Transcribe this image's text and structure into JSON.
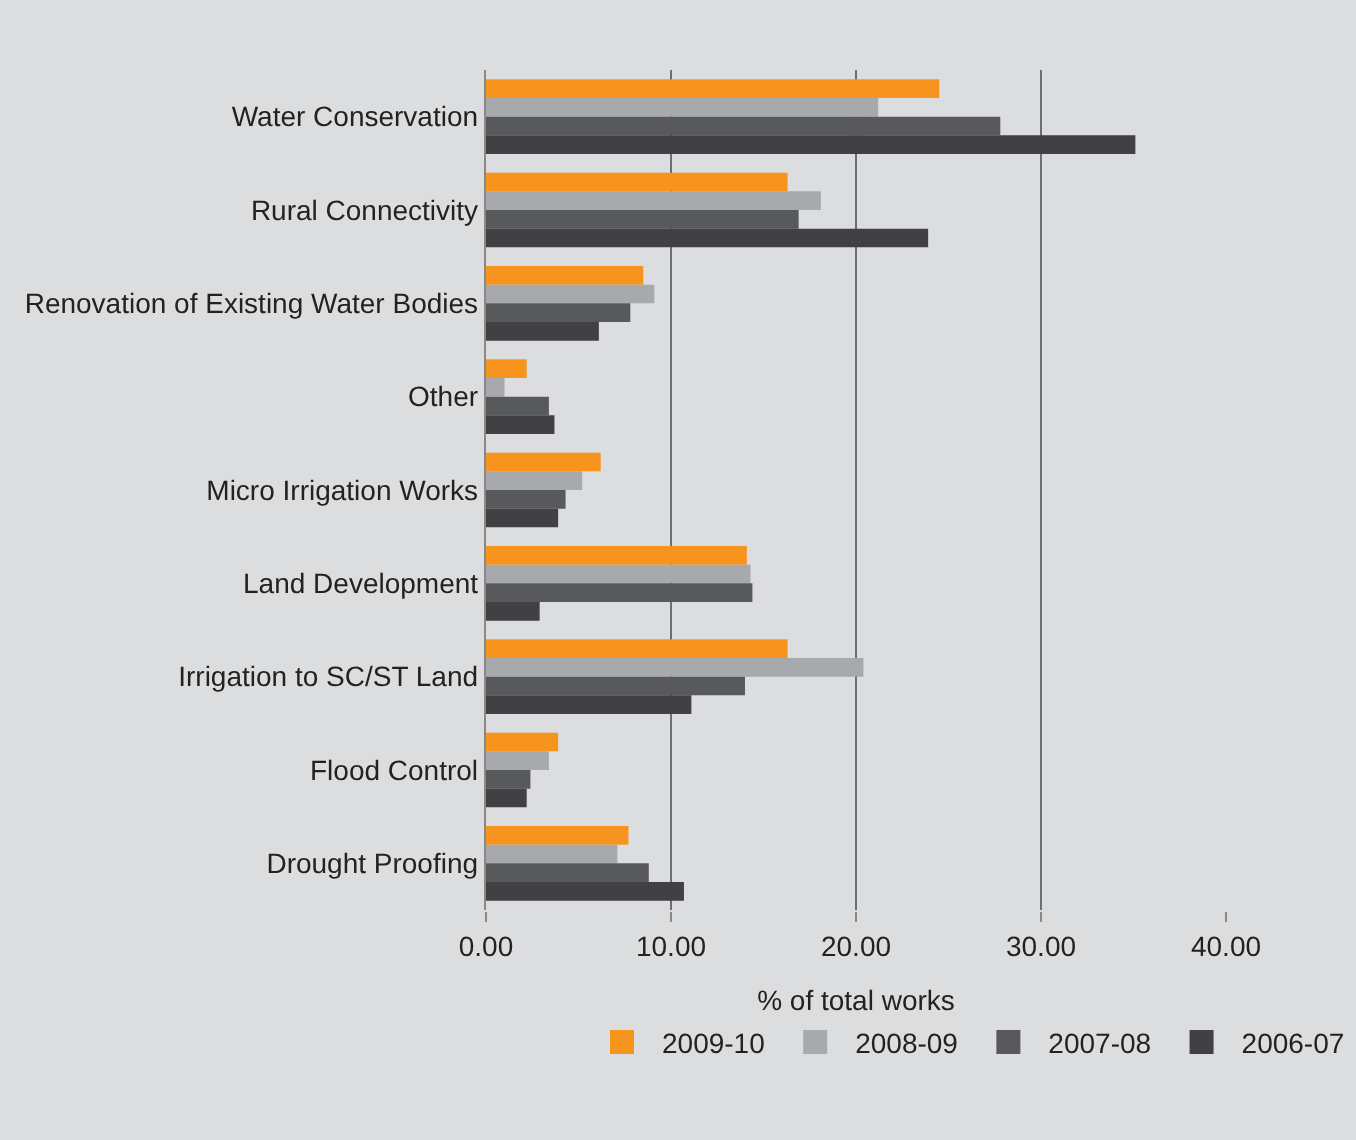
{
  "chart_data": {
    "type": "bar",
    "orientation": "horizontal",
    "xlabel": "% of total works",
    "categories": [
      "Water Conservation",
      "Rural Connectivity",
      "Renovation of Existing Water Bodies",
      "Other",
      "Micro Irrigation Works",
      "Land Development",
      "Irrigation to SC/ST Land",
      "Flood Control",
      "Drought Proofing"
    ],
    "series": [
      {
        "name": "2009-10",
        "color": "#f7941d",
        "values": [
          24.5,
          16.3,
          8.5,
          2.2,
          6.2,
          14.1,
          16.3,
          3.9,
          7.7
        ]
      },
      {
        "name": "2008-09",
        "color": "#a7a9ac",
        "values": [
          21.2,
          18.1,
          9.1,
          1.0,
          5.2,
          14.3,
          20.4,
          3.4,
          7.1
        ]
      },
      {
        "name": "2007-08",
        "color": "#58595b",
        "values": [
          27.8,
          16.9,
          7.8,
          3.4,
          4.3,
          14.4,
          14.0,
          2.4,
          8.8
        ]
      },
      {
        "name": "2006-07",
        "color": "#414042",
        "values": [
          35.1,
          23.9,
          6.1,
          3.7,
          3.9,
          2.9,
          11.1,
          2.2,
          10.7
        ]
      }
    ],
    "xlim": [
      0,
      40
    ],
    "xticks": [
      {
        "value": 0,
        "label": "0.00"
      },
      {
        "value": 10,
        "label": "10.00"
      },
      {
        "value": 20,
        "label": "20.00"
      },
      {
        "value": 30,
        "label": "30.00"
      },
      {
        "value": 40,
        "label": "40.00"
      }
    ],
    "grid": "x",
    "legend": "bottom"
  }
}
